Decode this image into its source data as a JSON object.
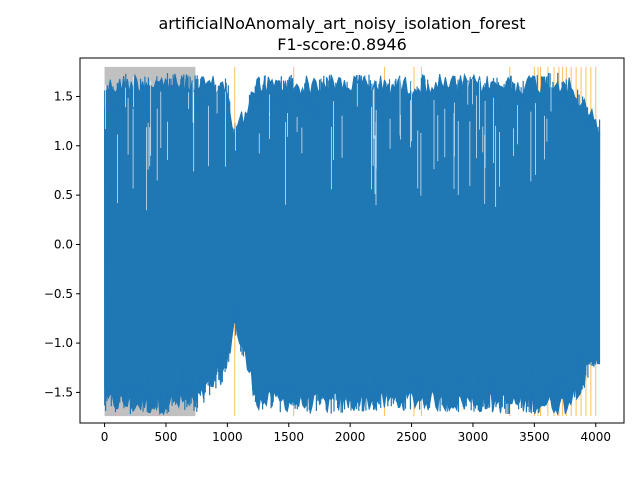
{
  "chart_data": {
    "type": "line",
    "title": "artificialNoAnomaly_art_noisy_isolation_forest",
    "subtitle": "F1-score:0.8946",
    "xlabel": "",
    "ylabel": "",
    "xlim": [
      -200,
      4230
    ],
    "ylim": [
      -1.81,
      1.89
    ],
    "xticks": [
      0,
      500,
      1000,
      1500,
      2000,
      2500,
      3000,
      3500,
      4000
    ],
    "xtick_labels": [
      "0",
      "500",
      "1000",
      "1500",
      "2000",
      "2500",
      "3000",
      "3500",
      "4000"
    ],
    "yticks": [
      1.5,
      1.0,
      0.5,
      0.0,
      -0.5,
      -1.0,
      -1.5
    ],
    "ytick_labels": [
      "1.5",
      "1.0",
      "0.5",
      "0.0",
      "−0.5",
      "−1.0",
      "−1.5"
    ],
    "grid": false,
    "series": [
      {
        "color": "#1f77b4",
        "x_start": 0,
        "x_end": 4031,
        "y_min": -1.73,
        "y_max": 1.75,
        "envelope": [
          {
            "x": 0,
            "lo": -1.7,
            "hi": 1.7
          },
          {
            "x": 250,
            "lo": -1.73,
            "hi": 1.75
          },
          {
            "x": 500,
            "lo": -1.72,
            "hi": 1.74
          },
          {
            "x": 750,
            "lo": -1.7,
            "hi": 1.72
          },
          {
            "x": 1000,
            "lo": -1.35,
            "hi": 1.7
          },
          {
            "x": 1050,
            "lo": -0.87,
            "hi": 1.2
          },
          {
            "x": 1250,
            "lo": -1.7,
            "hi": 1.72
          },
          {
            "x": 1500,
            "lo": -1.7,
            "hi": 1.72
          },
          {
            "x": 1750,
            "lo": -1.73,
            "hi": 1.72
          },
          {
            "x": 2000,
            "lo": -1.7,
            "hi": 1.74
          },
          {
            "x": 2250,
            "lo": -1.7,
            "hi": 1.72
          },
          {
            "x": 2500,
            "lo": -1.68,
            "hi": 1.72
          },
          {
            "x": 2750,
            "lo": -1.7,
            "hi": 1.73
          },
          {
            "x": 3000,
            "lo": -1.7,
            "hi": 1.72
          },
          {
            "x": 3250,
            "lo": -1.72,
            "hi": 1.72
          },
          {
            "x": 3500,
            "lo": -1.72,
            "hi": 1.74
          },
          {
            "x": 3750,
            "lo": -1.73,
            "hi": 1.75
          },
          {
            "x": 4031,
            "lo": -1.25,
            "hi": 1.28
          }
        ]
      }
    ],
    "shaded_regions": [
      {
        "x0": 0,
        "x1": 740,
        "color": "#c0c0c0",
        "label_kind": "window"
      }
    ],
    "anomaly_marks": {
      "color": "#ffbf5f",
      "x": [
        1060,
        1540,
        2280,
        2520,
        2580,
        3300,
        3500,
        3530,
        3550,
        3610,
        3660,
        3700,
        3730,
        3760,
        3800,
        3840,
        3880,
        3920,
        3960,
        4000
      ]
    }
  }
}
